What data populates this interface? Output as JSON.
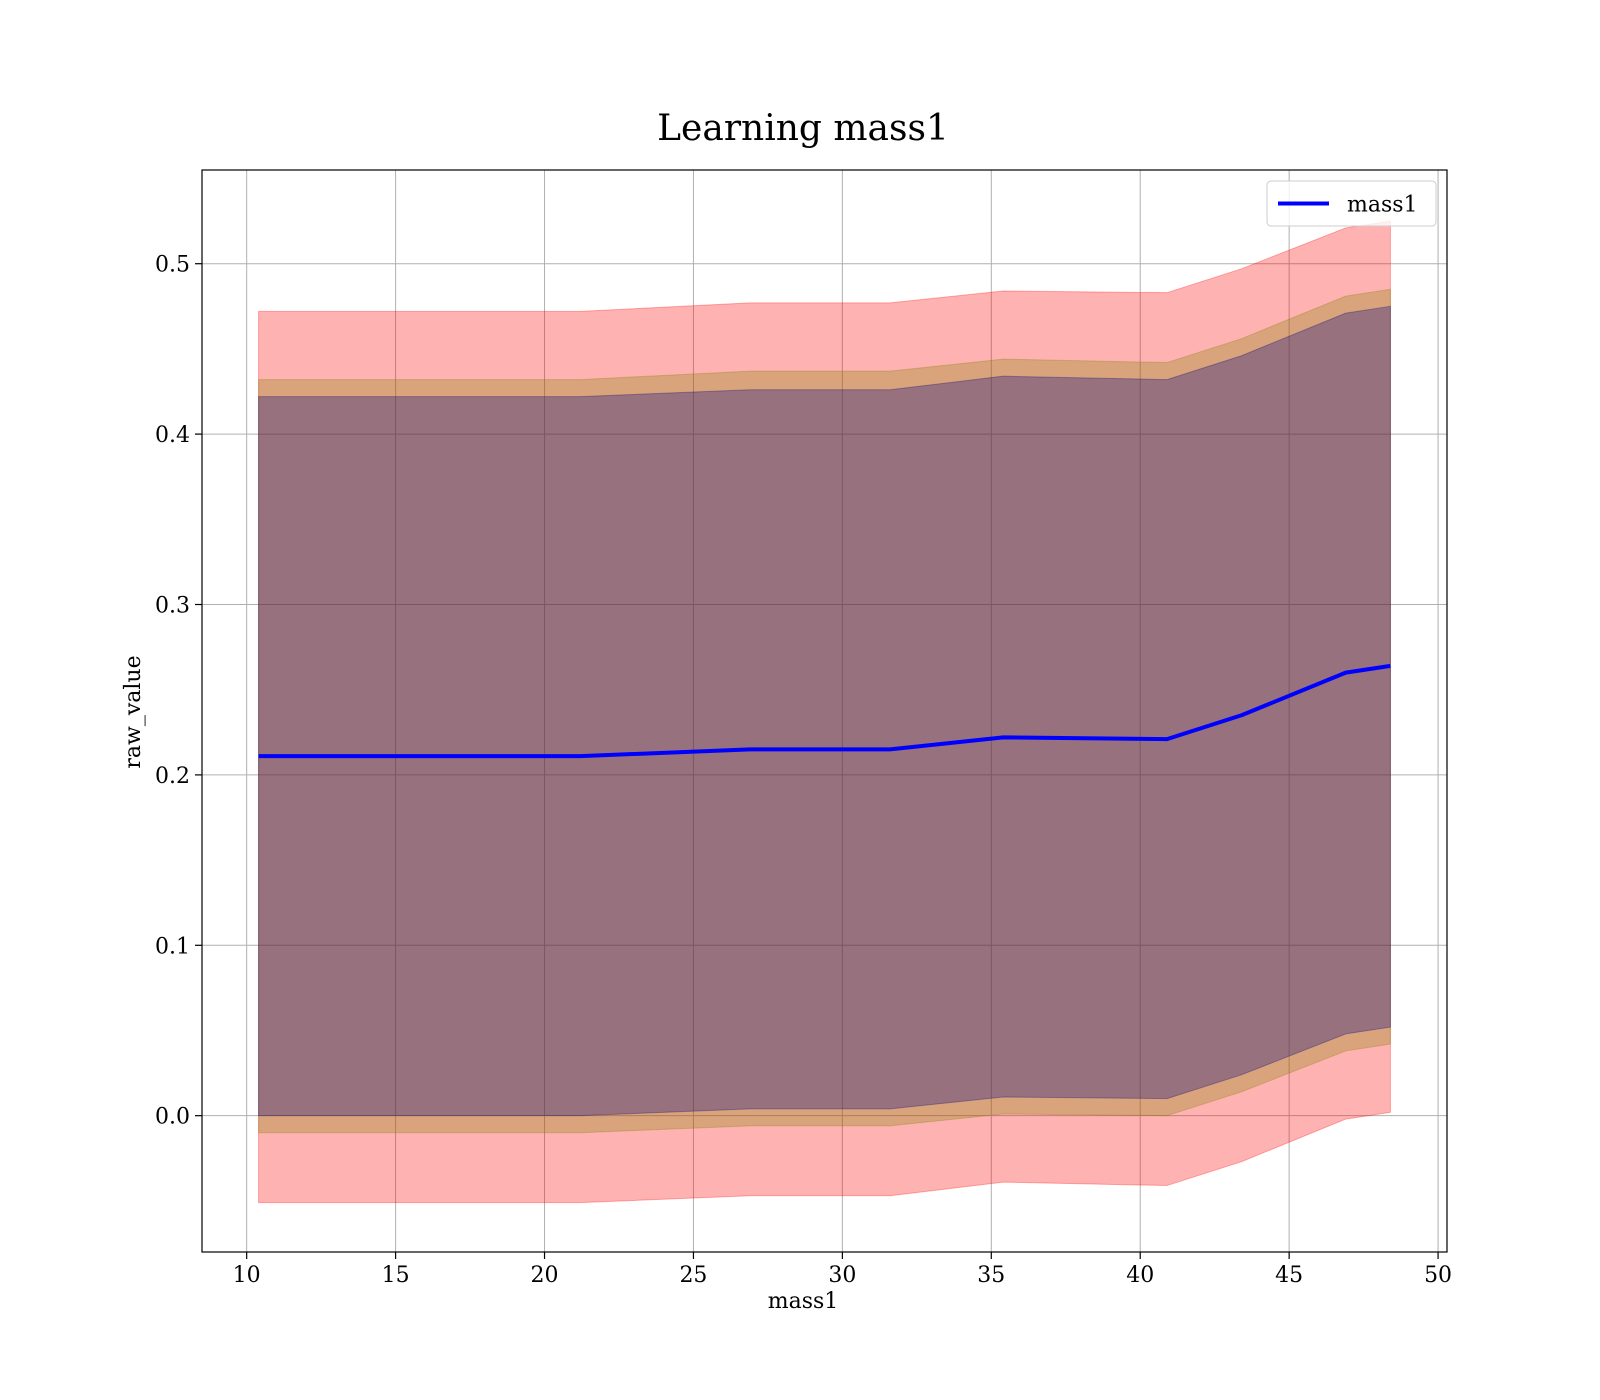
{
  "chart_data": {
    "type": "line",
    "title": "Learning mass1",
    "xlabel": "mass1",
    "ylabel": "raw_value",
    "xlim": [
      8.5,
      50.3
    ],
    "ylim": [
      -0.08,
      0.555
    ],
    "x_ticks": [
      10,
      15,
      20,
      25,
      30,
      35,
      40,
      45,
      50
    ],
    "y_ticks": [
      0.0,
      0.1,
      0.2,
      0.3,
      0.4,
      0.5
    ],
    "x_tick_labels": [
      "10",
      "15",
      "20",
      "25",
      "30",
      "35",
      "40",
      "45",
      "50"
    ],
    "y_tick_labels": [
      "0.0",
      "0.1",
      "0.2",
      "0.3",
      "0.4",
      "0.5"
    ],
    "grid": true,
    "legend": {
      "position": "upper right",
      "entries": [
        "mass1"
      ]
    },
    "x": [
      10.4,
      21.2,
      26.9,
      31.6,
      35.4,
      40.9,
      43.4,
      46.9,
      48.4
    ],
    "series": [
      {
        "name": "mass1",
        "color": "#0000ff",
        "values": [
          0.211,
          0.211,
          0.215,
          0.215,
          0.222,
          0.221,
          0.235,
          0.26,
          0.264
        ]
      }
    ],
    "bands": [
      {
        "color": "#ff0000",
        "opacity": 0.3,
        "lower": [
          -0.051,
          -0.051,
          -0.047,
          -0.047,
          -0.039,
          -0.041,
          -0.027,
          -0.002,
          0.002
        ],
        "upper": [
          0.472,
          0.472,
          0.477,
          0.477,
          0.484,
          0.483,
          0.497,
          0.521,
          0.525
        ]
      },
      {
        "color": "#808000",
        "opacity": 0.3,
        "lower": [
          -0.01,
          -0.01,
          -0.006,
          -0.006,
          0.001,
          0.0,
          0.014,
          0.038,
          0.042
        ],
        "upper": [
          0.432,
          0.432,
          0.437,
          0.437,
          0.444,
          0.442,
          0.456,
          0.481,
          0.485
        ]
      },
      {
        "color": "#000080",
        "opacity": 0.3,
        "lower": [
          0.0,
          0.0,
          0.004,
          0.004,
          0.011,
          0.01,
          0.024,
          0.048,
          0.052
        ],
        "upper": [
          0.422,
          0.422,
          0.426,
          0.426,
          0.434,
          0.432,
          0.446,
          0.471,
          0.475
        ]
      }
    ]
  }
}
